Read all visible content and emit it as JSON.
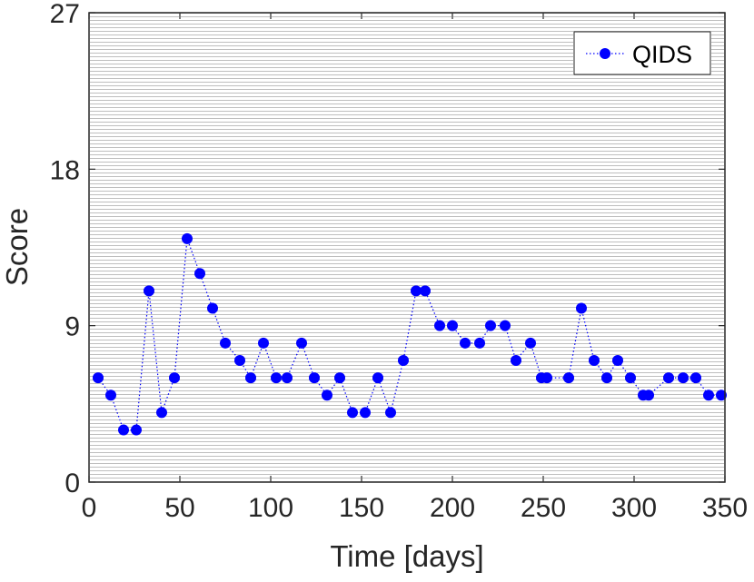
{
  "chart_data": {
    "type": "line",
    "xlabel": "Time [days]",
    "ylabel": "Score",
    "xlim": [
      0,
      350
    ],
    "ylim": [
      0,
      27
    ],
    "xticks": [
      "0",
      "50",
      "100",
      "150",
      "200",
      "250",
      "300",
      "350"
    ],
    "yticks": [
      "0",
      "9",
      "18",
      "27"
    ],
    "grid": "vertical dotted lines every day",
    "legend_position": "top-right",
    "series": [
      {
        "name": "QIDS",
        "color": "#0000ff",
        "line_style": "dotted",
        "marker": "circle",
        "x": [
          5,
          12,
          19,
          26,
          33,
          40,
          47,
          54,
          61,
          68,
          75,
          83,
          89,
          96,
          103,
          109,
          117,
          124,
          131,
          138,
          145,
          152,
          159,
          166,
          173,
          180,
          185,
          193,
          200,
          207,
          215,
          221,
          229,
          235,
          243,
          249,
          252,
          264,
          271,
          278,
          285,
          291,
          298,
          305,
          308,
          319,
          327,
          334,
          341,
          348
        ],
        "y": [
          6,
          5,
          3,
          3,
          11,
          4,
          6,
          14,
          12,
          10,
          8,
          7,
          6,
          8,
          6,
          6,
          8,
          6,
          5,
          6,
          4,
          4,
          6,
          4,
          7,
          11,
          11,
          9,
          9,
          8,
          8,
          9,
          9,
          7,
          8,
          6,
          6,
          6,
          10,
          7,
          6,
          7,
          6,
          5,
          5,
          6,
          6,
          6,
          5,
          5
        ]
      }
    ]
  }
}
